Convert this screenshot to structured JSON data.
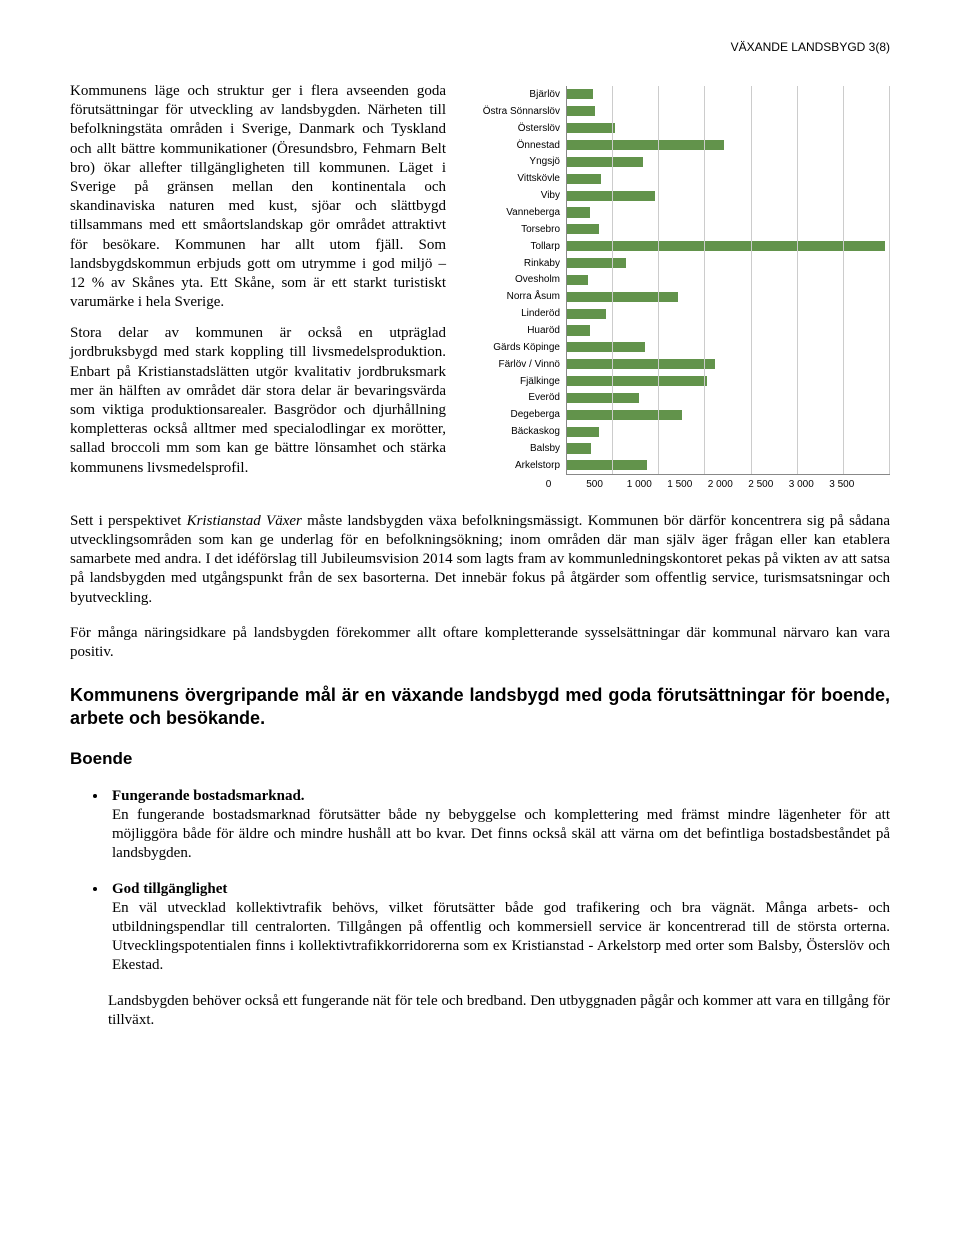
{
  "header": {
    "text": "VÄXANDE LANDSBYGD  3(8)"
  },
  "left_paragraphs": [
    "Kommunens läge och struktur ger i flera avseenden goda förutsättningar för utveckling av landsbygden. Närheten till befolkningstäta områden i Sverige, Danmark och Tyskland och allt bättre kommunikationer (Öresundsbro, Fehmarn Belt bro) ökar allefter tillgängligheten till kommunen. Läget i Sverige på gränsen mellan den kontinentala och skandinaviska naturen med kust, sjöar och slättbygd tillsammans med ett småortslandskap gör området attraktivt för besökare. Kommunen har allt utom fjäll. Som landsbygdskommun erbjuds gott om utrymme i god miljö – 12 % av Skånes yta. Ett Skåne, som är ett starkt turistiskt varumärke i hela Sverige.",
    "Stora delar av kommunen är också en utpräglad jordbruksbygd med stark koppling till livsmedelsproduktion. Enbart på Kristianstadslätten utgör kvalitativ jordbruksmark mer än hälften av området där stora delar är bevaringsvärda som viktiga produktionsarealer. Basgrödor och djurhållning kompletteras också alltmer med specialodlingar ex morötter, sallad broccoli mm som kan ge bättre lönsamhet och stärka kommunens livsmedelsprofil."
  ],
  "chart": {
    "type": "bar-horizontal",
    "x_min": 0,
    "x_max": 3500,
    "x_ticks": [
      0,
      500,
      1000,
      1500,
      2000,
      2500,
      3000,
      3500
    ],
    "x_tick_labels": [
      "0",
      "500",
      "1 000",
      "1 500",
      "2 000",
      "2 500",
      "3 000",
      "3 500"
    ],
    "bar_color": "#62934b",
    "grid_color": "#cccccc",
    "font_size": 10,
    "label_font": "Arial",
    "categories": [
      "Bjärlöv",
      "Östra Sönnarslöv",
      "Österslöv",
      "Önnestad",
      "Yngsjö",
      "Vittskövle",
      "Viby",
      "Vanneberga",
      "Torsebro",
      "Tollarp",
      "Rinkaby",
      "Ovesholm",
      "Norra Åsum",
      "Linderöd",
      "Huaröd",
      "Gärds Köpinge",
      "Färlöv / Vinnö",
      "Fjälkinge",
      "Everöd",
      "Degeberga",
      "Bäckaskog",
      "Balsby",
      "Arkelstorp"
    ],
    "values": [
      280,
      300,
      520,
      1700,
      820,
      370,
      950,
      250,
      350,
      3450,
      640,
      230,
      1200,
      420,
      250,
      850,
      1600,
      1520,
      780,
      1250,
      350,
      260,
      870
    ]
  },
  "body_paragraphs": [
    "Sett i perspektivet <em>Kristianstad Växer</em> måste landsbygden växa befolkningsmässigt. Kommunen bör därför koncentrera sig på sådana utvecklingsområden som kan ge underlag för en befolkningsökning; inom områden där man själv äger frågan eller kan etablera samarbete med andra. I det idéförslag till Jubileumsvision 2014 som lagts fram av kommunledningskontoret pekas på vikten av att satsa på landsbygden med utgångspunkt från de sex basorterna. Det innebär fokus på åtgärder som offentlig service, turismsatsningar och byutveckling.",
    "För många näringsidkare på landsbygden förekommer allt oftare kompletterande sysselsättningar där kommunal närvaro kan vara positiv."
  ],
  "section_heading": "Kommunens övergripande mål är en växande landsbygd med goda förutsättningar för boende, arbete och besökande.",
  "sub_heading": "Boende",
  "bullets": [
    {
      "head": "Fungerande bostadsmarknad.",
      "body": "En fungerande bostadsmarknad förutsätter både ny bebyggelse och komplettering med främst mindre lägenheter för att möjliggöra både för äldre och mindre hushåll att bo kvar. Det finns också skäl att värna om det befintliga bostadsbeståndet på landsbygden."
    },
    {
      "head": "God tillgänglighet",
      "body": "En väl utvecklad kollektivtrafik behövs, vilket förutsätter både god trafikering och bra vägnät. Många arbets- och utbildningspendlar till centralorten. Tillgången på offentlig och kommersiell service är koncentrerad till de största orterna. Utvecklingspotentialen finns i kollektivtrafikkorridorerna som ex Kristianstad - Arkelstorp med orter som Balsby, Österslöv och Ekestad."
    }
  ],
  "trailing_para": "Landsbygden behöver också ett fungerande nät för tele och bredband. Den utbyggnaden pågår och kommer att vara en tillgång för tillväxt."
}
